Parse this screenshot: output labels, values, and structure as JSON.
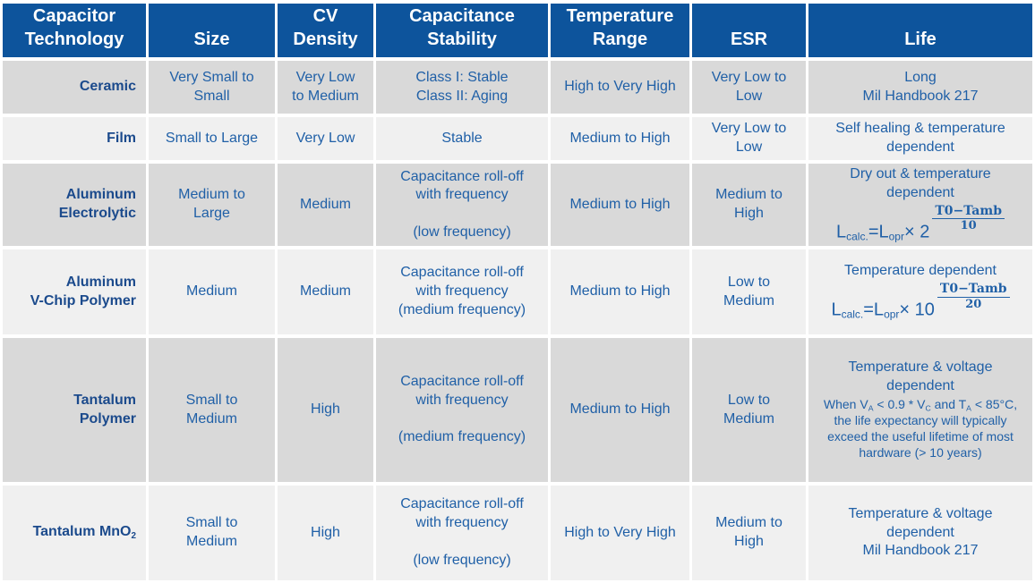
{
  "colors": {
    "header_bg": "#0d549c",
    "header_text": "#ffffff",
    "row_dark": "#d9d9d9",
    "row_light": "#f0f0f0",
    "cell_text": "#2060a7",
    "tech_text": "#1b4a8c",
    "gap": "#ffffff"
  },
  "header": {
    "cells": [
      "Capacitor\nTechnology",
      "Size",
      "CV\nDensity",
      "Capacitance\nStability",
      "Temperature\nRange",
      "ESR",
      "Life"
    ]
  },
  "rows": [
    {
      "tech": "Ceramic",
      "size": "Very Small to\nSmall",
      "cv_density": "Very Low\nto Medium",
      "stability": "Class I: Stable\nClass II: Aging",
      "temp_range": "High to Very High",
      "esr": "Very Low to\nLow",
      "life": "Long\nMil Handbook 217"
    },
    {
      "tech": "Film",
      "size": "Small to Large",
      "cv_density": "Very Low",
      "stability": "Stable",
      "temp_range": "Medium to High",
      "esr": "Very Low to\nLow",
      "life": "Self healing & temperature\ndependent"
    },
    {
      "tech": "Aluminum\nElectrolytic",
      "size": "Medium to\nLarge",
      "cv_density": "Medium",
      "stability": "Capacitance roll-off\nwith frequency\n\n(low frequency)",
      "temp_range": "Medium to High",
      "esr": "Medium to\nHigh",
      "life_heading": "Dry out & temperature\ndependent",
      "formula": {
        "sym1": "L",
        "sub1": "calc.",
        "eq": "=L",
        "sub2": "opr",
        "times": "× ",
        "base": "2",
        "num": "T0−Tamb",
        "den": "10"
      }
    },
    {
      "tech": "Aluminum\nV-Chip Polymer",
      "size": "Medium",
      "cv_density": "Medium",
      "stability": "Capacitance roll-off\nwith frequency\n(medium frequency)",
      "temp_range": "Medium to High",
      "esr": "Low to\nMedium",
      "life_heading": "Temperature dependent",
      "formula": {
        "sym1": "L",
        "sub1": "calc.",
        "eq": "=L",
        "sub2": "opr",
        "times": "× ",
        "base": "10",
        "num": "T0−Tamb",
        "den": "20"
      }
    },
    {
      "tech": "Tantalum\nPolymer",
      "size": "Small to\nMedium",
      "cv_density": "High",
      "stability": "Capacitance roll-off\nwith frequency\n\n(medium frequency)",
      "temp_range": "Medium to High",
      "esr": "Low to\nMedium",
      "life_heading": "Temperature & voltage\ndependent",
      "life_note": {
        "p1": "When V",
        "s1": "A",
        "p2": " < 0.9 * V",
        "s2": "C",
        "p3": " and T",
        "s3": "A",
        "p4": " < 85°C, the life expectancy will typically exceed the useful lifetime of most hardware (> 10 years)"
      }
    },
    {
      "tech_main": "Tantalum MnO",
      "tech_sub": "2",
      "size": "Small to\nMedium",
      "cv_density": "High",
      "stability": "Capacitance roll-off\nwith frequency\n\n(low frequency)",
      "temp_range": "High to Very High",
      "esr": "Medium to\nHigh",
      "life": "Temperature & voltage\ndependent\nMil Handbook 217"
    }
  ]
}
